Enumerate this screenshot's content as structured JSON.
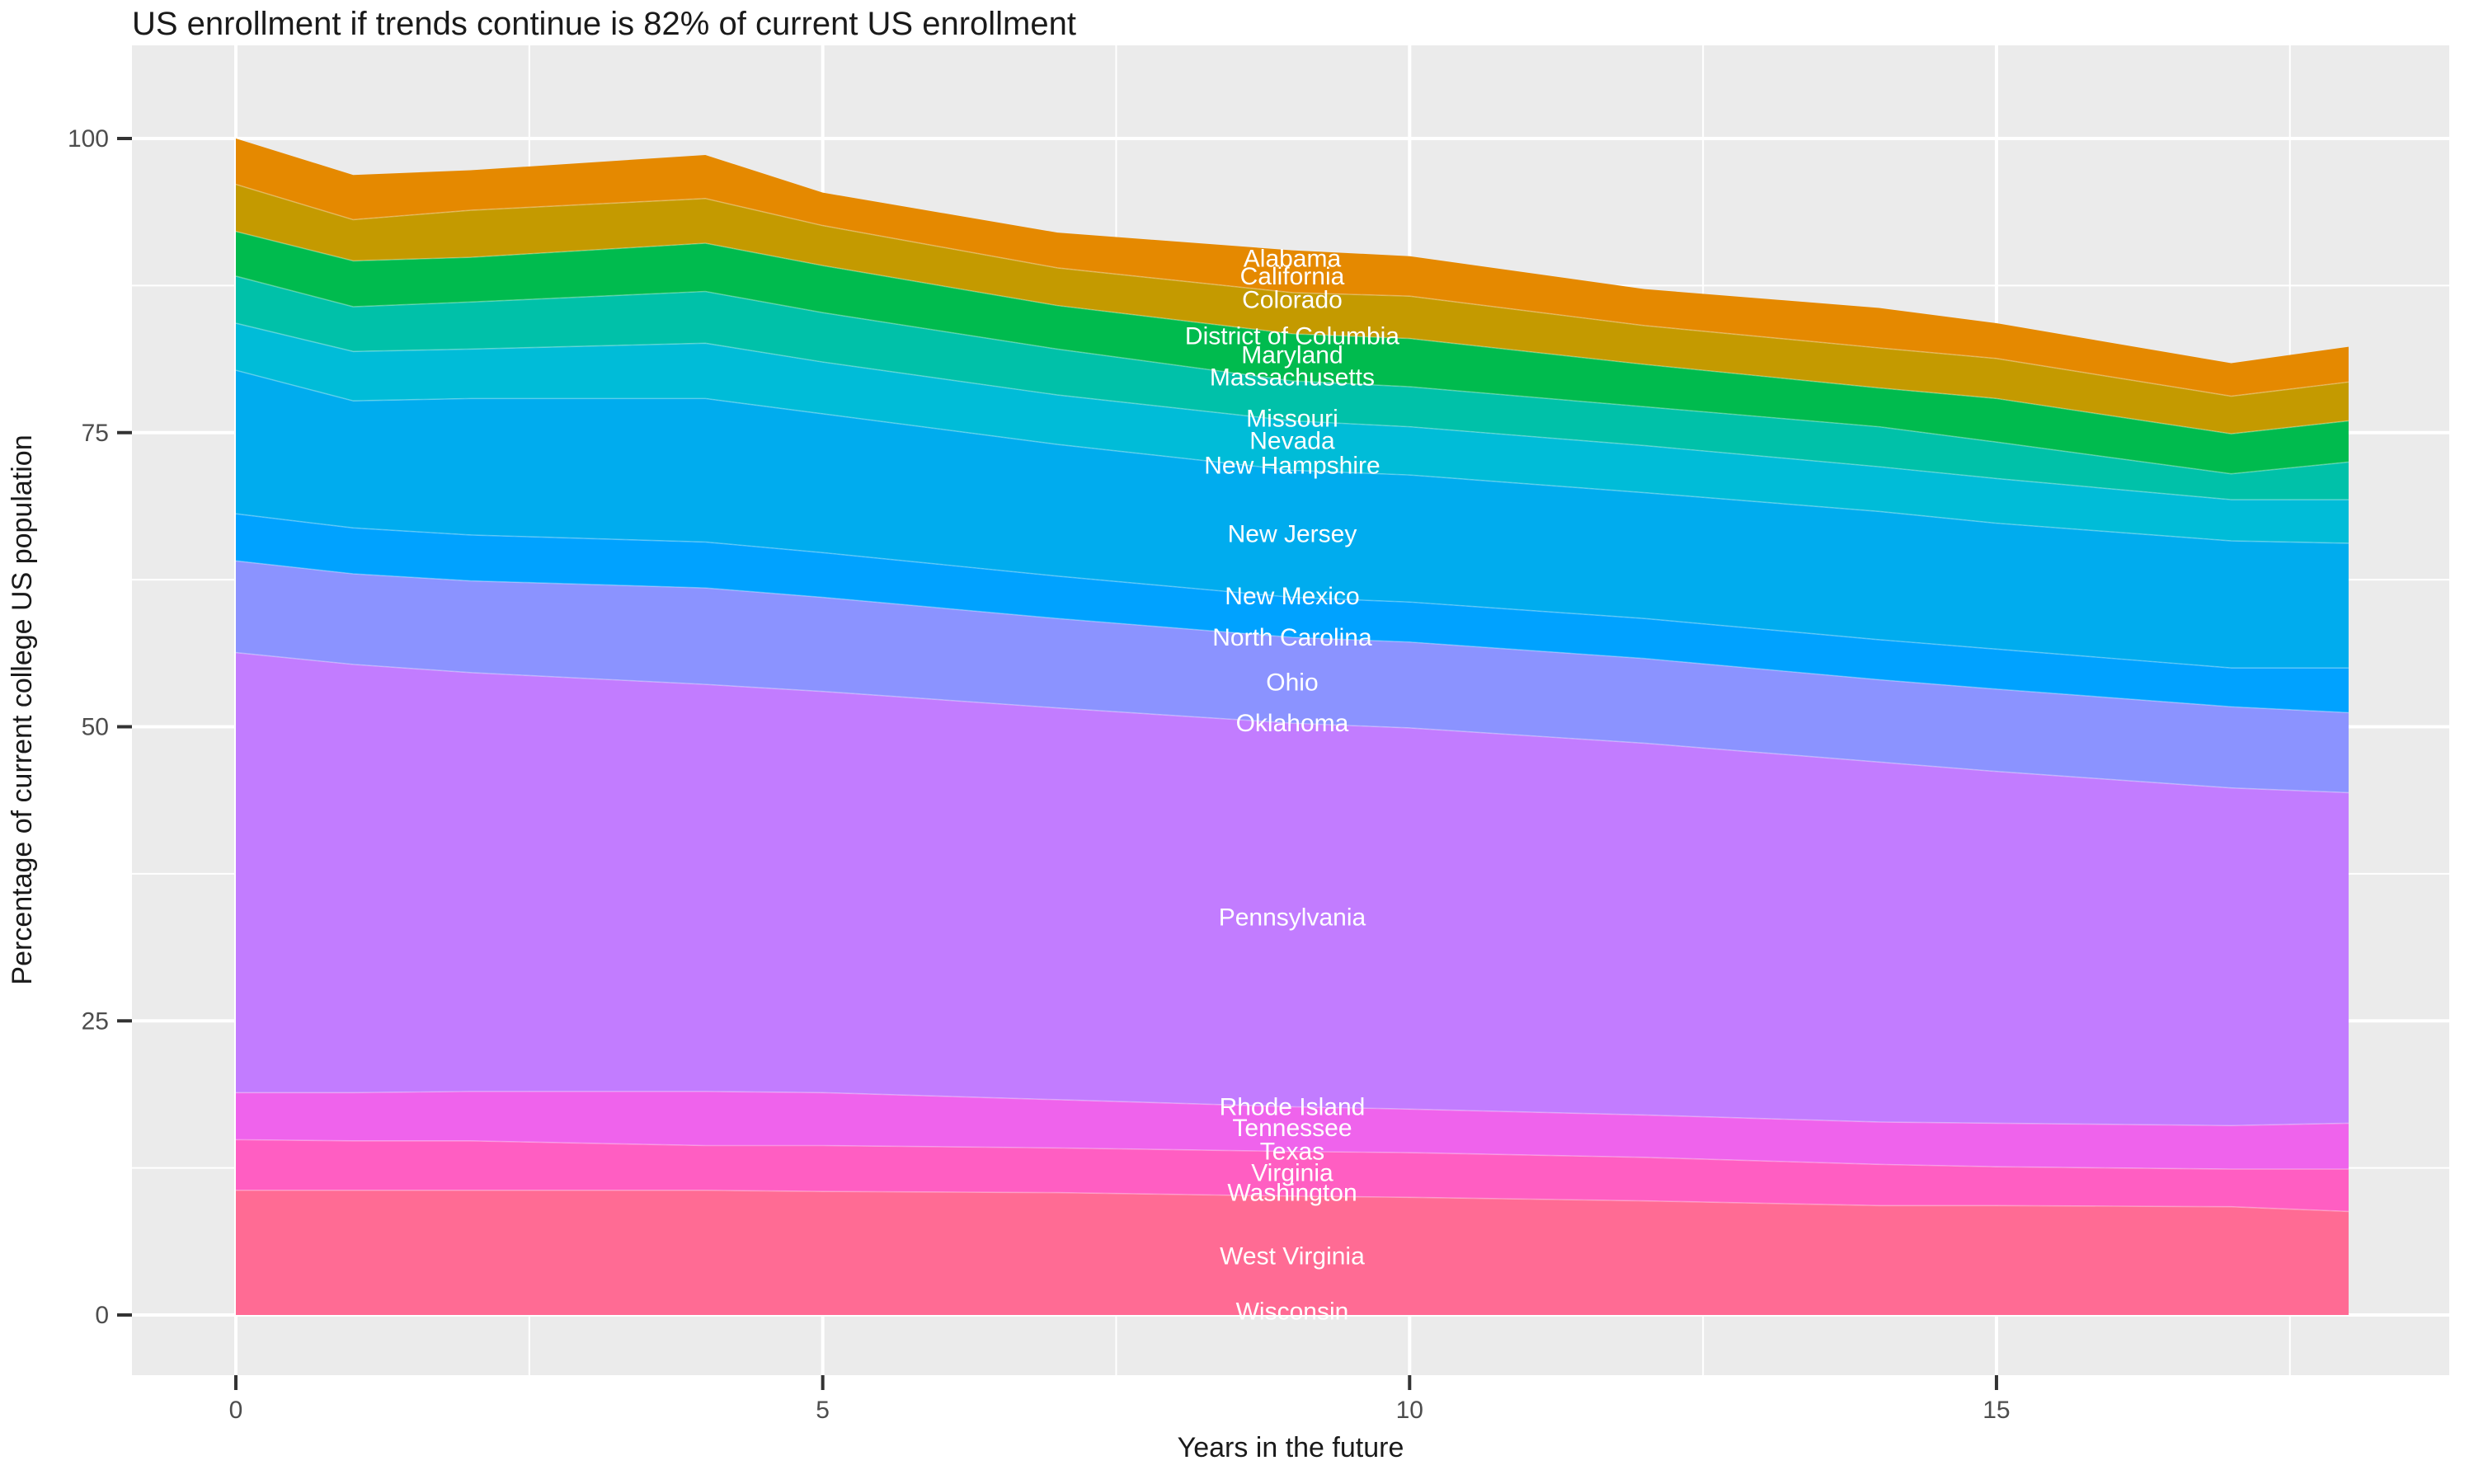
{
  "title": "US enrollment if trends continue is 82% of current US enrollment",
  "axes": {
    "x_label": "Years in the future",
    "y_label": "Percentage of current college US population",
    "x_ticks": [
      0,
      5,
      10,
      15
    ],
    "x_minor": [
      2.5,
      7.5,
      12.5,
      17.5
    ],
    "y_ticks": [
      0,
      25,
      50,
      75,
      100
    ],
    "y_minor": [
      12.5,
      37.5,
      62.5,
      87.5
    ]
  },
  "colors": {
    "background": "#FFFFFF",
    "panel": "#EBEBEB",
    "grid": "#FFFFFF",
    "tick_mark": "#333333",
    "tick_text": "#4D4D4D",
    "title_text": "#1A1A1A",
    "state_label_text": "#FFFFFF"
  },
  "chart_data": {
    "type": "area",
    "stacked": true,
    "title": "US enrollment if trends continue is 82% of current US enrollment",
    "xlabel": "Years in the future",
    "ylabel": "Percentage of current college US population",
    "xlim": [
      -0.9,
      18.9
    ],
    "ylim": [
      0,
      105
    ],
    "grid": true,
    "legend": "none",
    "x": [
      0,
      1,
      2,
      4,
      5,
      7,
      9,
      10,
      12,
      14,
      15,
      17,
      18
    ],
    "series_note": "bands listed bottom-to-top; values are band thickness in percent of current college US population; visually merged states share one band color",
    "series": [
      {
        "name": "band-salmon",
        "color": "#FF6B94",
        "states": [
          "Washington",
          "West Virginia",
          "Wisconsin"
        ],
        "values": [
          10.6,
          10.6,
          10.6,
          10.6,
          10.5,
          10.4,
          10.1,
          10.0,
          9.7,
          9.3,
          9.3,
          9.2,
          8.8
        ]
      },
      {
        "name": "band-hotpink",
        "color": "#FF5EC2",
        "states": [
          "Texas",
          "Virginia"
        ],
        "values": [
          4.3,
          4.2,
          4.2,
          3.8,
          3.9,
          3.8,
          3.8,
          3.8,
          3.7,
          3.5,
          3.3,
          3.2,
          3.6
        ]
      },
      {
        "name": "band-magenta",
        "color": "#EF63EC",
        "states": [
          "Rhode Island",
          "Tennessee"
        ],
        "values": [
          4.0,
          4.1,
          4.2,
          4.6,
          4.5,
          4.1,
          3.8,
          3.7,
          3.6,
          3.6,
          3.7,
          3.7,
          3.9
        ]
      },
      {
        "name": "band-purple",
        "color": "#C27CFF",
        "states": [
          "Oklahoma",
          "Pennsylvania"
        ],
        "values": [
          37.4,
          36.4,
          35.6,
          34.6,
          34.1,
          33.3,
          32.6,
          32.4,
          31.6,
          30.6,
          29.9,
          28.7,
          28.1
        ]
      },
      {
        "name": "band-periwinkle",
        "color": "#8B93FF",
        "states": [
          "North Carolina",
          "Ohio"
        ],
        "values": [
          7.8,
          7.7,
          7.8,
          8.2,
          8.0,
          7.6,
          7.3,
          7.3,
          7.2,
          7.0,
          7.0,
          6.9,
          6.8
        ]
      },
      {
        "name": "band-blue",
        "color": "#00A2FF",
        "states": [
          "New Mexico"
        ],
        "values": [
          4.0,
          3.9,
          3.9,
          3.9,
          3.8,
          3.6,
          3.4,
          3.4,
          3.4,
          3.4,
          3.4,
          3.3,
          3.8
        ]
      },
      {
        "name": "band-bigcyan",
        "color": "#00ACEE",
        "states": [
          "New Jersey"
        ],
        "values": [
          12.2,
          10.8,
          11.6,
          12.2,
          11.8,
          11.2,
          10.8,
          10.8,
          10.7,
          10.9,
          10.7,
          10.8,
          10.6
        ]
      },
      {
        "name": "band-tealcyan",
        "color": "#00BCD8",
        "states": [
          "Nevada",
          "New Hampshire"
        ],
        "values": [
          4.0,
          4.2,
          4.2,
          4.7,
          4.4,
          4.2,
          4.2,
          4.1,
          4.0,
          3.8,
          3.8,
          3.5,
          3.7
        ]
      },
      {
        "name": "band-teal",
        "color": "#00C1A9",
        "states": [
          "Massachusetts",
          "Missouri"
        ],
        "values": [
          4.0,
          3.8,
          4.0,
          4.4,
          4.2,
          3.9,
          3.4,
          3.4,
          3.3,
          3.4,
          3.1,
          2.2,
          3.2
        ]
      },
      {
        "name": "band-green",
        "color": "#00BB4E",
        "states": [
          "District of Columbia",
          "Maryland"
        ],
        "values": [
          3.8,
          3.9,
          3.8,
          4.1,
          4.0,
          3.7,
          4.0,
          4.1,
          3.6,
          3.3,
          3.7,
          3.4,
          3.5
        ]
      },
      {
        "name": "band-gold",
        "color": "#C49A00",
        "states": [
          "Colorado"
        ],
        "values": [
          4.0,
          3.5,
          4.0,
          3.8,
          3.4,
          3.2,
          3.5,
          3.6,
          3.3,
          3.4,
          3.4,
          3.2,
          3.3
        ]
      },
      {
        "name": "band-orange",
        "color": "#E58900",
        "states": [
          "Alabama",
          "California"
        ],
        "values": [
          3.9,
          3.8,
          3.4,
          3.7,
          2.8,
          3.0,
          3.6,
          3.4,
          3.1,
          3.4,
          3.0,
          2.8,
          3.0
        ]
      }
    ],
    "state_labels": [
      {
        "text": "Alabama",
        "x": 9,
        "y": 89.8
      },
      {
        "text": "California",
        "x": 9,
        "y": 88.3
      },
      {
        "text": "Colorado",
        "x": 9,
        "y": 86.3
      },
      {
        "text": "District of Columbia",
        "x": 9,
        "y": 83.2
      },
      {
        "text": "Maryland",
        "x": 9,
        "y": 81.6
      },
      {
        "text": "Massachusetts",
        "x": 9,
        "y": 79.7
      },
      {
        "text": "Missouri",
        "x": 9,
        "y": 76.2
      },
      {
        "text": "Nevada",
        "x": 9,
        "y": 74.3
      },
      {
        "text": "New Hampshire",
        "x": 9,
        "y": 72.2
      },
      {
        "text": "New Jersey",
        "x": 9,
        "y": 66.4
      },
      {
        "text": "New Mexico",
        "x": 9,
        "y": 61.1
      },
      {
        "text": "North Carolina",
        "x": 9,
        "y": 57.6
      },
      {
        "text": "Ohio",
        "x": 9,
        "y": 53.8
      },
      {
        "text": "Oklahoma",
        "x": 9,
        "y": 50.3
      },
      {
        "text": "Pennsylvania",
        "x": 9,
        "y": 33.8
      },
      {
        "text": "Rhode Island",
        "x": 9,
        "y": 17.7
      },
      {
        "text": "Tennessee",
        "x": 9,
        "y": 15.9
      },
      {
        "text": "Texas",
        "x": 9,
        "y": 13.9
      },
      {
        "text": "Virginia",
        "x": 9,
        "y": 12.1
      },
      {
        "text": "Washington",
        "x": 9,
        "y": 10.4
      },
      {
        "text": "West Virginia",
        "x": 9,
        "y": 5.0
      },
      {
        "text": "Wisconsin",
        "x": 9,
        "y": 0.3
      }
    ]
  }
}
